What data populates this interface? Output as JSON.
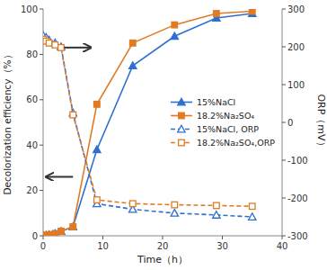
{
  "chart_data": {
    "type": "line",
    "xlabel": "Time（h）",
    "ylabel": "Decolorization efficiency（%）",
    "y2label": "ORP（mV）",
    "x": [
      0,
      0.5,
      1,
      2,
      3,
      5,
      9,
      15,
      22,
      29,
      35
    ],
    "xlim": [
      0,
      40
    ],
    "xticks": [
      0,
      10,
      20,
      30,
      40
    ],
    "ylim": [
      0,
      100
    ],
    "yticks": [
      0,
      20,
      40,
      60,
      80,
      100
    ],
    "y2lim": [
      -300,
      300
    ],
    "y2ticks": [
      -300,
      -200,
      -100,
      0,
      100,
      200,
      300
    ],
    "grid": false,
    "legend": "center right",
    "series": [
      {
        "name": "15%NaCl",
        "color": "#2f6fd0",
        "marker": "triangle",
        "line_style": "solid",
        "values": [
          0,
          0.3,
          0.5,
          1,
          2,
          4,
          38,
          75,
          88,
          96,
          98
        ]
      },
      {
        "name": "18.2%Na₂SO₄",
        "color": "#e07b24",
        "marker": "square",
        "line_style": "solid",
        "values": [
          0,
          0.3,
          0.5,
          1,
          2,
          4,
          58,
          85,
          93,
          98,
          99
        ]
      },
      {
        "name": "15%NaCl, ORP",
        "color": "#2f6fd0",
        "marker": "triangle-open",
        "line_style": "dashed",
        "axis": "y2",
        "values": [
          230,
          225,
          218,
          210,
          200,
          25,
          -215,
          -230,
          -240,
          -245,
          -250
        ]
      },
      {
        "name": "18.2%Na₂SO₄,ORP",
        "color": "#e07b24",
        "marker": "square-open",
        "line_style": "dashed",
        "axis": "y2",
        "values": [
          220,
          215,
          210,
          205,
          198,
          20,
          -205,
          -215,
          -218,
          -220,
          -222
        ]
      }
    ],
    "annotations": [
      {
        "x": 3.5,
        "y": 83,
        "dx": 4.5,
        "dy": 0
      },
      {
        "x": 5.0,
        "y": 26,
        "dx": -4.5,
        "dy": 0
      }
    ]
  }
}
